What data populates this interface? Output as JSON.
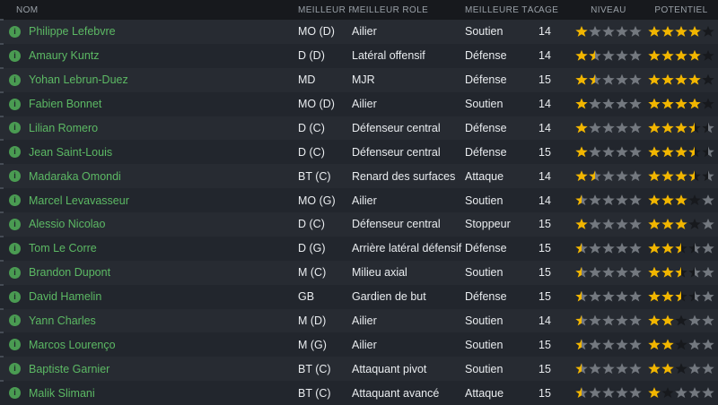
{
  "columns": [
    {
      "key": "nom",
      "label": "NOM"
    },
    {
      "key": "meilleur_poste",
      "label": "MEILLEUR P..."
    },
    {
      "key": "meilleur_role",
      "label": "MEILLEUR RÔLE"
    },
    {
      "key": "meilleure_tache",
      "label": "MEILLEURE TÂC..."
    },
    {
      "key": "age",
      "label": "ÂGE"
    },
    {
      "key": "niveau",
      "label": "NIVEAU"
    },
    {
      "key": "potentiel",
      "label": "POTENTIEL"
    }
  ],
  "icons": {
    "info": "i"
  },
  "colors": {
    "star_gold": "#f2b600",
    "star_gray": "#73787f",
    "star_dark": "#17191d",
    "name_green": "#5cb964",
    "row_odd": "#272b32",
    "row_even": "#22262d",
    "header_bg": "#17191d",
    "header_text": "#9aa1a8",
    "text": "#e9ecef"
  },
  "rows": [
    {
      "name": "Philippe Lefebvre",
      "position": "MO (D)",
      "role": "Ailier",
      "duty": "Soutien",
      "age": "14",
      "niveau": [
        "gold",
        "gray",
        "gray",
        "gray",
        "gray"
      ],
      "potentiel": [
        "gold",
        "gold",
        "gold",
        "gold",
        "dark"
      ]
    },
    {
      "name": "Amaury Kuntz",
      "position": "D (D)",
      "role": "Latéral offensif",
      "duty": "Défense",
      "age": "14",
      "niveau": [
        "gold",
        "gold-gray",
        "gray",
        "gray",
        "gray"
      ],
      "potentiel": [
        "gold",
        "gold",
        "gold",
        "gold",
        "dark"
      ]
    },
    {
      "name": "Yohan Lebrun-Duez",
      "position": "MD",
      "role": "MJR",
      "duty": "Défense",
      "age": "15",
      "niveau": [
        "gold",
        "gold-gray",
        "gray",
        "gray",
        "gray"
      ],
      "potentiel": [
        "gold",
        "gold",
        "gold",
        "gold",
        "dark"
      ]
    },
    {
      "name": "Fabien Bonnet",
      "position": "MO (D)",
      "role": "Ailier",
      "duty": "Soutien",
      "age": "14",
      "niveau": [
        "gold",
        "gray",
        "gray",
        "gray",
        "gray"
      ],
      "potentiel": [
        "gold",
        "gold",
        "gold",
        "gold",
        "dark"
      ]
    },
    {
      "name": "Lilian Romero",
      "position": "D (C)",
      "role": "Défenseur central",
      "duty": "Défense",
      "age": "14",
      "niveau": [
        "gold",
        "gray",
        "gray",
        "gray",
        "gray"
      ],
      "potentiel": [
        "gold",
        "gold",
        "gold",
        "gold-dark",
        "dark-gray"
      ]
    },
    {
      "name": "Jean Saint-Louis",
      "position": "D (C)",
      "role": "Défenseur central",
      "duty": "Défense",
      "age": "15",
      "niveau": [
        "gold",
        "gray",
        "gray",
        "gray",
        "gray"
      ],
      "potentiel": [
        "gold",
        "gold",
        "gold",
        "gold-dark",
        "dark-gray"
      ]
    },
    {
      "name": "Madaraka Omondi",
      "position": "BT (C)",
      "role": "Renard des surfaces",
      "duty": "Attaque",
      "age": "14",
      "niveau": [
        "gold",
        "gold-gray",
        "gray",
        "gray",
        "gray"
      ],
      "potentiel": [
        "gold",
        "gold",
        "gold",
        "gold-dark",
        "dark-gray"
      ]
    },
    {
      "name": "Marcel Levavasseur",
      "position": "MO (G)",
      "role": "Ailier",
      "duty": "Soutien",
      "age": "14",
      "niveau": [
        "gold-gray",
        "gray",
        "gray",
        "gray",
        "gray"
      ],
      "potentiel": [
        "gold",
        "gold",
        "gold",
        "dark",
        "gray"
      ]
    },
    {
      "name": "Alessio Nicolao",
      "position": "D (C)",
      "role": "Défenseur central",
      "duty": "Stoppeur",
      "age": "15",
      "niveau": [
        "gold",
        "gray",
        "gray",
        "gray",
        "gray"
      ],
      "potentiel": [
        "gold",
        "gold",
        "gold",
        "dark",
        "gray"
      ]
    },
    {
      "name": "Tom Le Corre",
      "position": "D (G)",
      "role": "Arrière latéral défensif",
      "duty": "Défense",
      "age": "15",
      "niveau": [
        "gold-gray",
        "gray",
        "gray",
        "gray",
        "gray"
      ],
      "potentiel": [
        "gold",
        "gold",
        "gold-dark",
        "dark-gray",
        "gray"
      ]
    },
    {
      "name": "Brandon Dupont",
      "position": "M (C)",
      "role": "Milieu axial",
      "duty": "Soutien",
      "age": "15",
      "niveau": [
        "gold-gray",
        "gray",
        "gray",
        "gray",
        "gray"
      ],
      "potentiel": [
        "gold",
        "gold",
        "gold-dark",
        "dark-gray",
        "gray"
      ]
    },
    {
      "name": "David Hamelin",
      "position": "GB",
      "role": "Gardien de but",
      "duty": "Défense",
      "age": "15",
      "niveau": [
        "gold-gray",
        "gray",
        "gray",
        "gray",
        "gray"
      ],
      "potentiel": [
        "gold",
        "gold",
        "gold-dark",
        "dark-gray",
        "gray"
      ]
    },
    {
      "name": "Yann Charles",
      "position": "M (D)",
      "role": "Ailier",
      "duty": "Soutien",
      "age": "14",
      "niveau": [
        "gold-gray",
        "gray",
        "gray",
        "gray",
        "gray"
      ],
      "potentiel": [
        "gold",
        "gold",
        "dark",
        "gray",
        "gray"
      ]
    },
    {
      "name": "Marcos Lourenço",
      "position": "M (G)",
      "role": "Ailier",
      "duty": "Soutien",
      "age": "15",
      "niveau": [
        "gold-gray",
        "gray",
        "gray",
        "gray",
        "gray"
      ],
      "potentiel": [
        "gold",
        "gold",
        "dark",
        "gray",
        "gray"
      ]
    },
    {
      "name": "Baptiste Garnier",
      "position": "BT (C)",
      "role": "Attaquant pivot",
      "duty": "Soutien",
      "age": "15",
      "niveau": [
        "gold-gray",
        "gray",
        "gray",
        "gray",
        "gray"
      ],
      "potentiel": [
        "gold",
        "gold",
        "dark",
        "gray",
        "gray"
      ]
    },
    {
      "name": "Malik Slimani",
      "position": "BT (C)",
      "role": "Attaquant avancé",
      "duty": "Attaque",
      "age": "15",
      "niveau": [
        "gold-gray",
        "gray",
        "gray",
        "gray",
        "gray"
      ],
      "potentiel": [
        "gold",
        "dark",
        "gray",
        "gray",
        "gray"
      ]
    }
  ]
}
